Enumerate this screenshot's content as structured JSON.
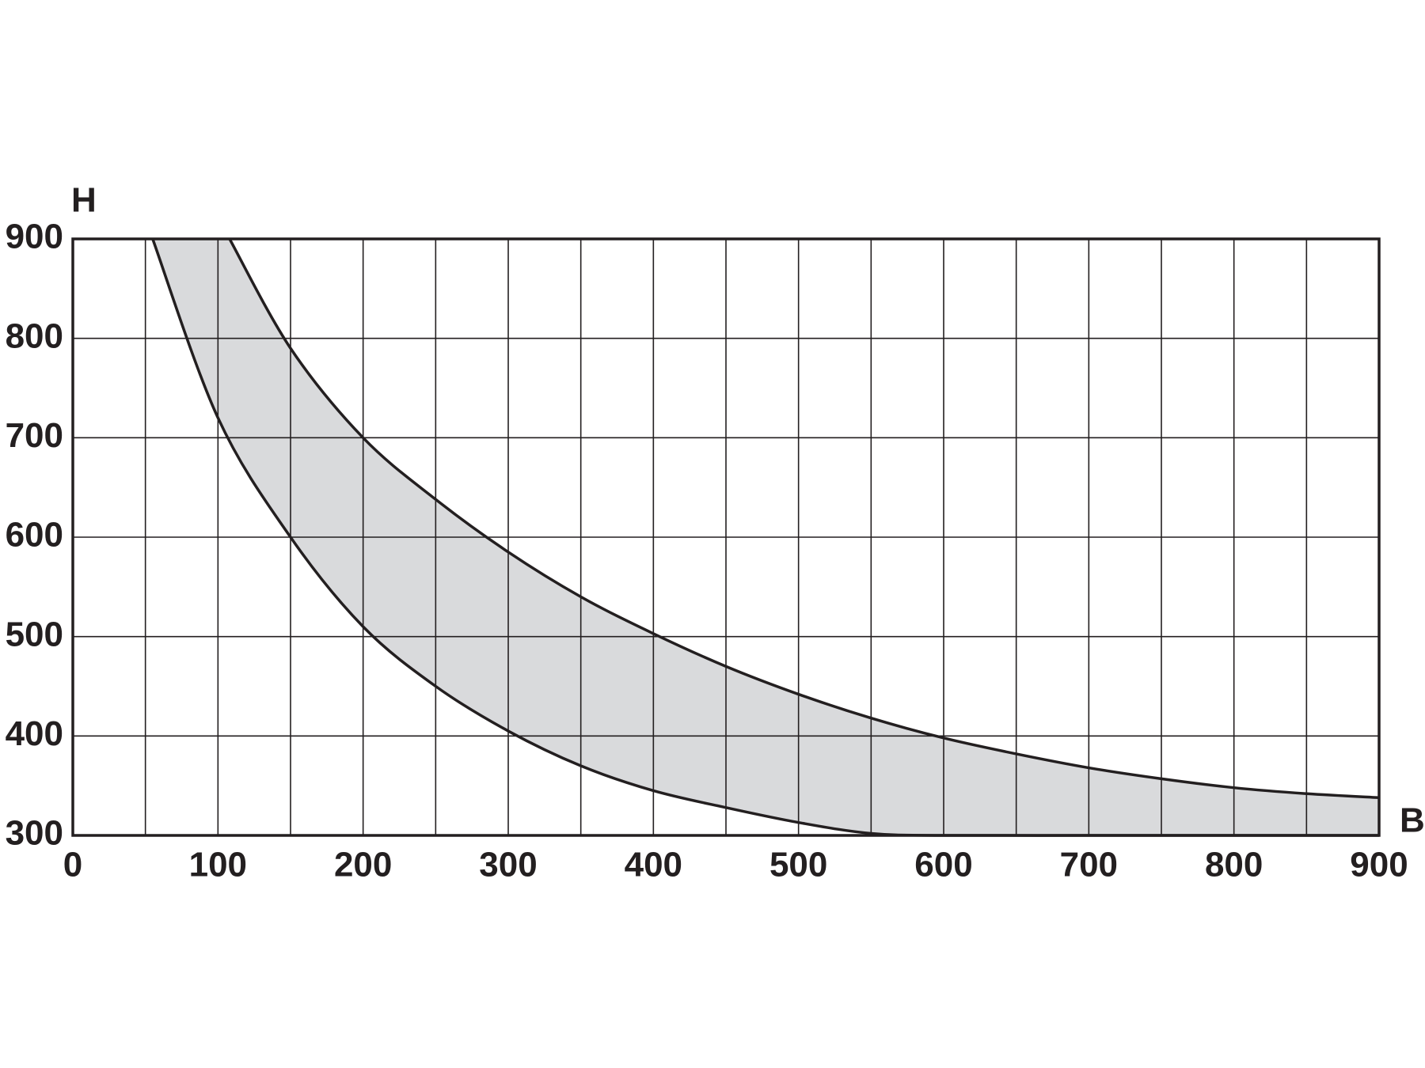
{
  "chart_data": {
    "type": "band",
    "x_label": "B",
    "y_label": "H",
    "xlim": [
      0,
      900
    ],
    "ylim": [
      300,
      900
    ],
    "xticks": [
      0,
      100,
      200,
      300,
      400,
      500,
      600,
      700,
      800,
      900
    ],
    "yticks": [
      300,
      400,
      500,
      600,
      700,
      800,
      900
    ],
    "x_minor_grid": [
      50,
      150,
      250,
      350,
      450,
      550,
      650,
      750,
      850
    ],
    "grid": true,
    "fill_color": "#d9dadc",
    "line_color": "#231f20",
    "series": [
      {
        "x": [
          55,
          100,
          150,
          200,
          250,
          300,
          350,
          400,
          450,
          500,
          550,
          600,
          700,
          800,
          900
        ],
        "values": [
          900,
          720,
          600,
          510,
          450,
          405,
          370,
          345,
          328,
          313,
          302,
          300,
          300,
          300,
          300
        ]
      },
      {
        "x": [
          108,
          150,
          200,
          250,
          300,
          350,
          400,
          450,
          500,
          550,
          600,
          650,
          700,
          750,
          800,
          850,
          900
        ],
        "values": [
          900,
          790,
          700,
          638,
          585,
          540,
          503,
          470,
          442,
          418,
          398,
          382,
          368,
          357,
          348,
          342,
          338
        ]
      }
    ]
  }
}
